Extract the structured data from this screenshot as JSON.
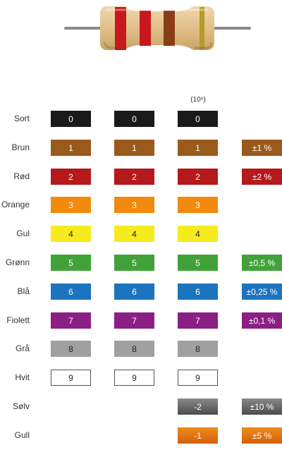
{
  "header": {
    "exponent_label": "(10ⁿ)"
  },
  "rows": [
    {
      "name": "Sort",
      "color": "#1a1a1a",
      "text": "#ffffff",
      "d1": "0",
      "d2": "0",
      "mult": "0",
      "tol": ""
    },
    {
      "name": "Brun",
      "color": "#9a5a1c",
      "text": "#ffffff",
      "d1": "1",
      "d2": "1",
      "mult": "1",
      "tol": "±1 %"
    },
    {
      "name": "Rød",
      "color": "#b5191c",
      "text": "#ffffff",
      "d1": "2",
      "d2": "2",
      "mult": "2",
      "tol": "±2 %"
    },
    {
      "name": "Orange",
      "color": "#f28a0e",
      "text": "#ffffff",
      "d1": "3",
      "d2": "3",
      "mult": "3",
      "tol": ""
    },
    {
      "name": "Gul",
      "color": "#f7ea1e",
      "text": "#222222",
      "d1": "4",
      "d2": "4",
      "mult": "4",
      "tol": ""
    },
    {
      "name": "Grønn",
      "color": "#41a23a",
      "text": "#ffffff",
      "d1": "5",
      "d2": "5",
      "mult": "5",
      "tol": "±0,5 %"
    },
    {
      "name": "Blå",
      "color": "#1b74bd",
      "text": "#ffffff",
      "d1": "6",
      "d2": "6",
      "mult": "6",
      "tol": "±0,25 %"
    },
    {
      "name": "Fiolett",
      "color": "#8b1f84",
      "text": "#ffffff",
      "d1": "7",
      "d2": "7",
      "mult": "7",
      "tol": "±0,1 %"
    },
    {
      "name": "Grå",
      "color": "#a0a0a0",
      "text": "#222222",
      "d1": "8",
      "d2": "8",
      "mult": "8",
      "tol": ""
    },
    {
      "name": "Hvit",
      "color": "#ffffff",
      "text": "#222222",
      "d1": "9",
      "d2": "9",
      "mult": "9",
      "tol": ""
    },
    {
      "name": "Sølv",
      "color": "#6a6a6a",
      "text": "#ffffff",
      "d1": "",
      "d2": "",
      "mult": "-2",
      "tol": "±10 %"
    },
    {
      "name": "Gull",
      "color": "#e8760f",
      "text": "#ffffff",
      "d1": "",
      "d2": "",
      "mult": "-1",
      "tol": "±5 %"
    }
  ],
  "resistor": {
    "body_color": "#e3c28f",
    "lead_color": "#8a8a8a",
    "band_colors": [
      "#c8181e",
      "#c8181e",
      "#8a3e17",
      "#b89a2a"
    ]
  }
}
